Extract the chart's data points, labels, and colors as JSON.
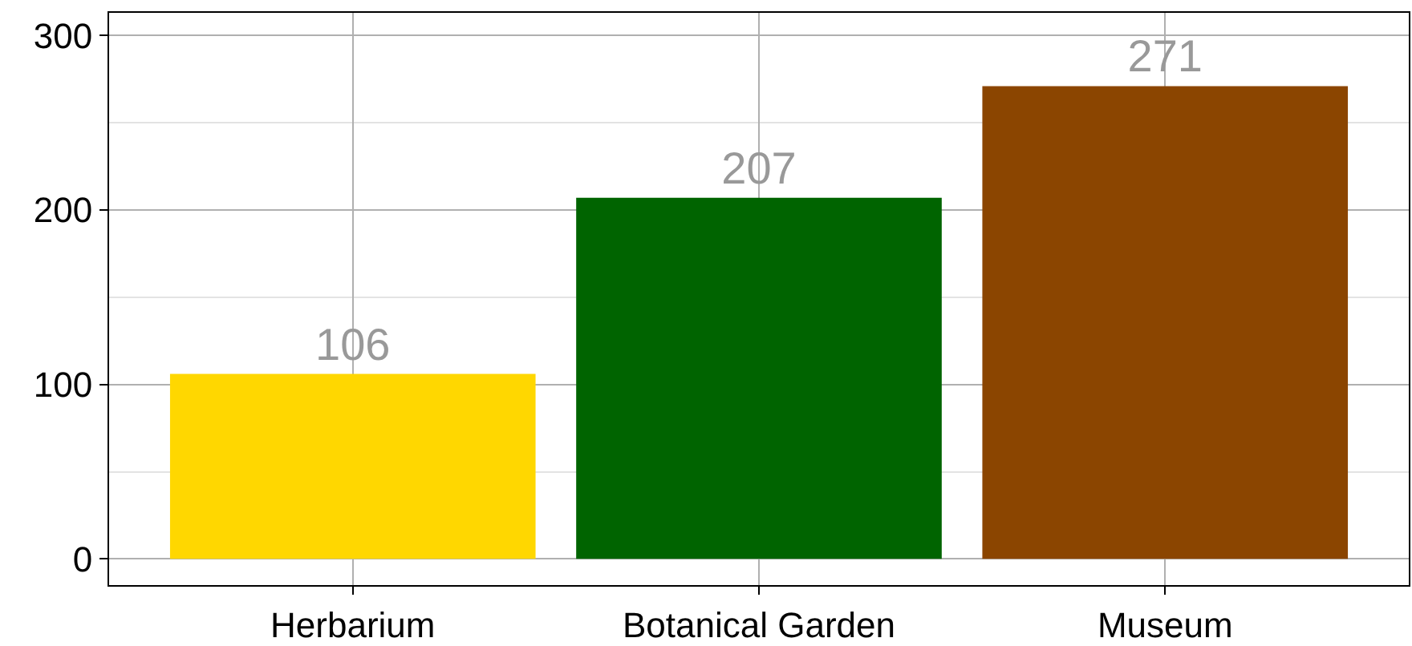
{
  "chart_data": {
    "type": "bar",
    "categories": [
      "Herbarium",
      "Botanical Garden",
      "Museum"
    ],
    "values": [
      106,
      207,
      271
    ],
    "colors": [
      "#ffd700",
      "#006400",
      "#8b4500"
    ],
    "data_labels": true,
    "grid": true,
    "ylim": [
      -15,
      313
    ],
    "yticks": [
      0,
      {
        "value": 50,
        "label": null
      },
      100,
      {
        "value": 150,
        "label": null
      },
      200,
      {
        "value": 250,
        "label": null
      },
      300
    ]
  }
}
